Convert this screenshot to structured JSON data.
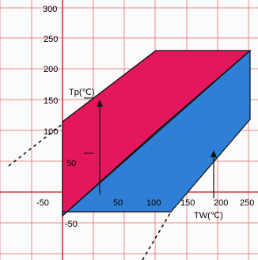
{
  "chart_data": {
    "type": "diagram",
    "x_ticks": [
      -50,
      50,
      100,
      150,
      200,
      250
    ],
    "y_ticks": [
      300,
      250,
      200,
      150,
      100,
      50,
      -50
    ],
    "x_tick_labels": [
      "-50",
      "50",
      "100",
      "150",
      "200",
      "250"
    ],
    "y_tick_labels": [
      "300",
      "250",
      "200",
      "150",
      "100",
      "50",
      "-50"
    ],
    "y_label": "Tp(℃)",
    "x_label": "TW(℃)",
    "colors": {
      "background": "#fbfbfb",
      "grid": "#e58a8a",
      "axis": "#d63b3b",
      "pink": "#e4175e",
      "blue": "#2f7fd6",
      "outline": "#111111",
      "dash": "#111111",
      "text": "#000000"
    }
  }
}
